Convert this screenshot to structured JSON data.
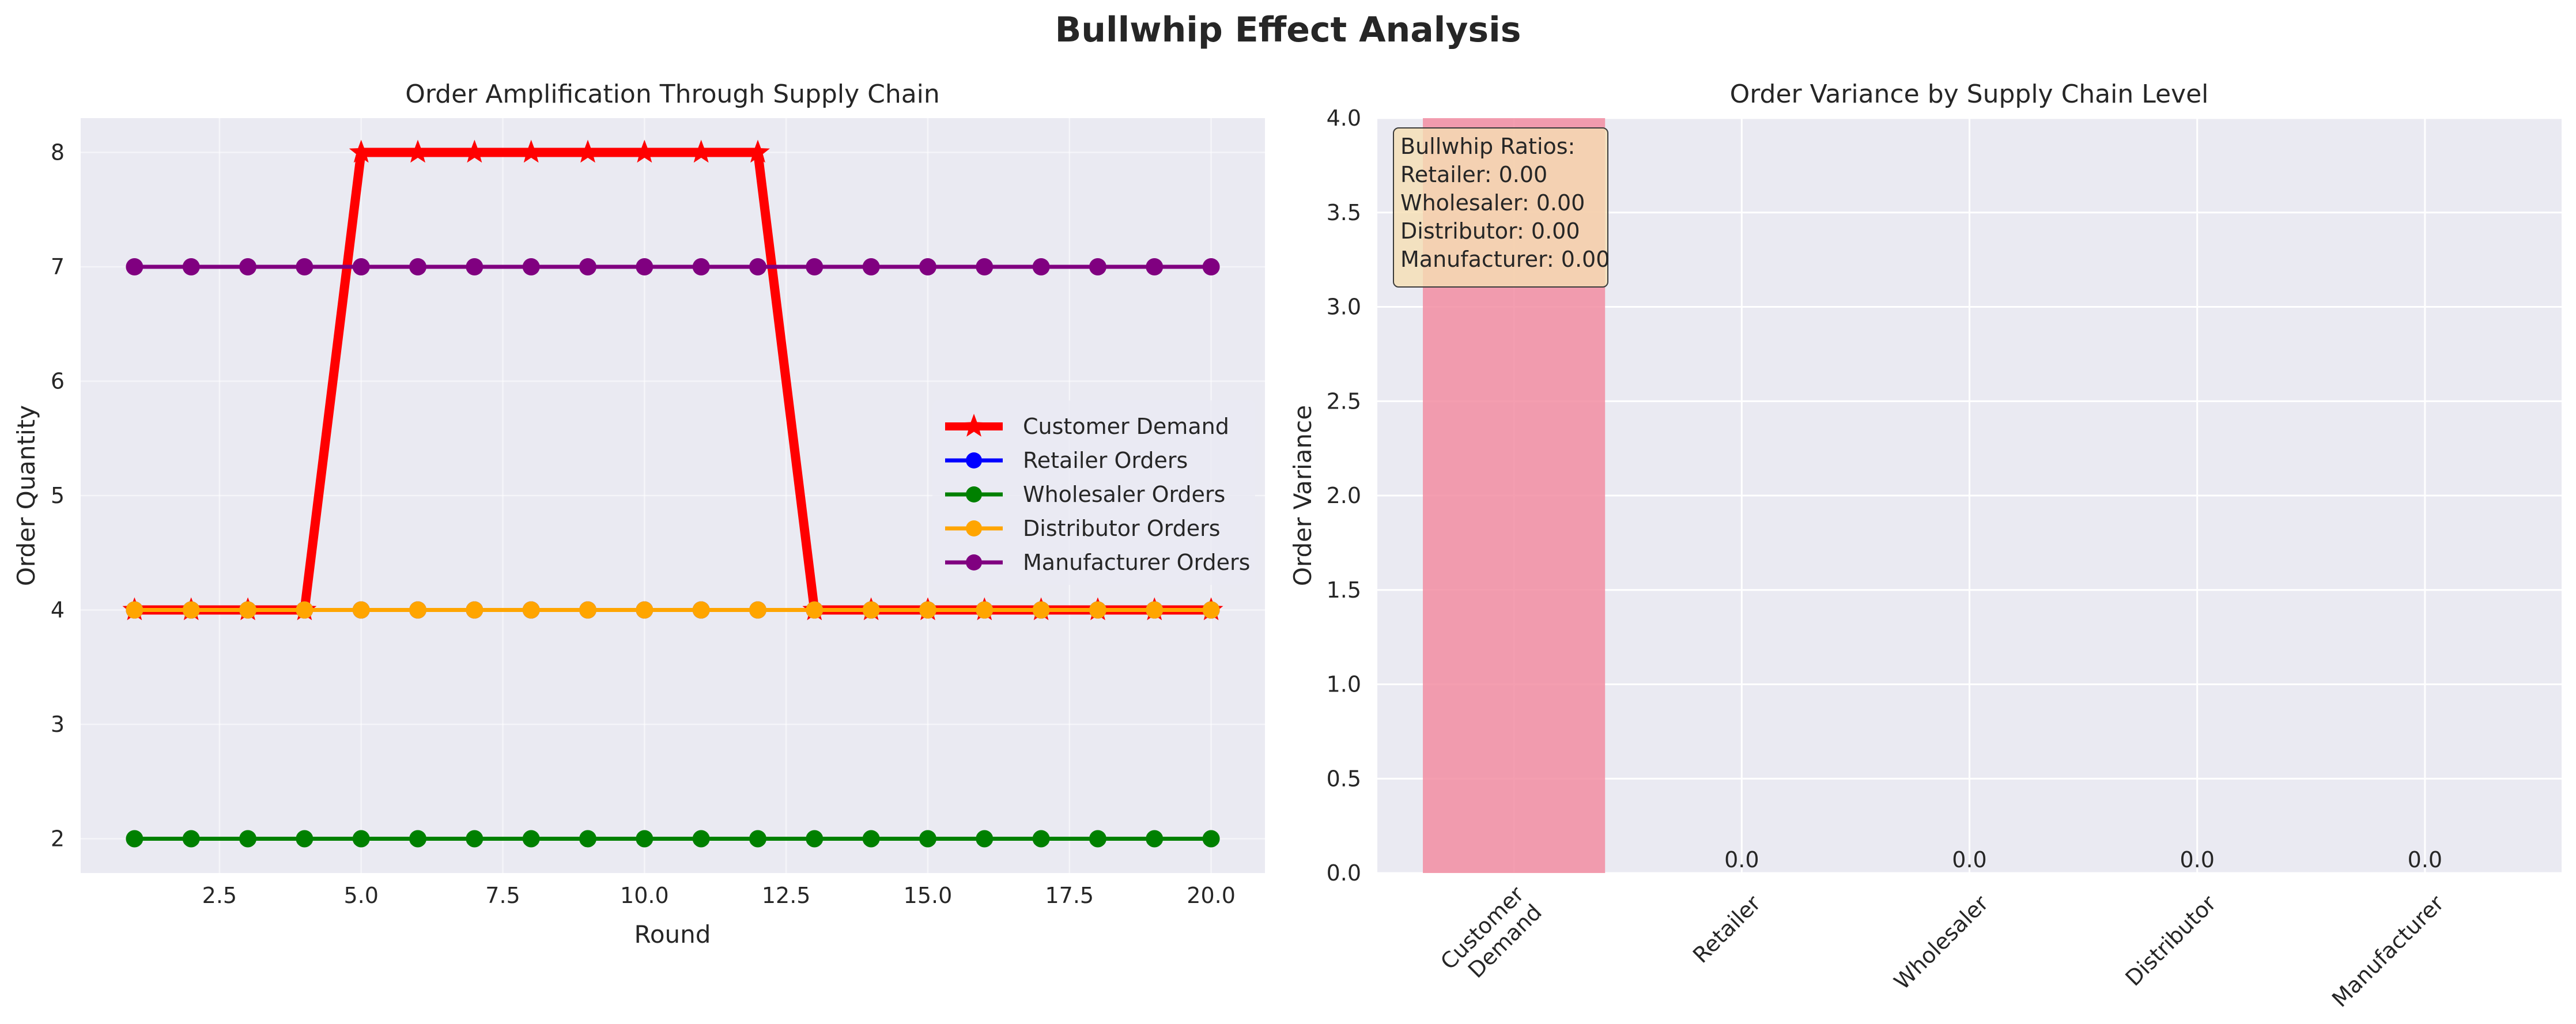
{
  "figure": {
    "suptitle": "Bullwhip Effect Analysis",
    "colors": {
      "plot_bg": "#eaeaf2",
      "grid": "#ffffff",
      "text": "#262626"
    }
  },
  "chart_data": [
    {
      "type": "line",
      "title": "Order Amplification Through Supply Chain",
      "xlabel": "Round",
      "ylabel": "Order Quantity",
      "xlim": [
        0.05,
        20.95
      ],
      "ylim": [
        1.7,
        8.3
      ],
      "xticks": [
        "2.5",
        "5.0",
        "7.5",
        "10.0",
        "12.5",
        "15.0",
        "17.5",
        "20.0"
      ],
      "yticks": [
        "2",
        "3",
        "4",
        "5",
        "6",
        "7",
        "8"
      ],
      "grid": true,
      "legend_position": "center-right",
      "x": [
        1,
        2,
        3,
        4,
        5,
        6,
        7,
        8,
        9,
        10,
        11,
        12,
        13,
        14,
        15,
        16,
        17,
        18,
        19,
        20
      ],
      "series": [
        {
          "name": "Customer Demand",
          "color": "#ff0000",
          "marker": "star",
          "values": [
            4,
            4,
            4,
            4,
            8,
            8,
            8,
            8,
            8,
            8,
            8,
            8,
            4,
            4,
            4,
            4,
            4,
            4,
            4,
            4
          ]
        },
        {
          "name": "Retailer Orders",
          "color": "#0000ff",
          "marker": "circle",
          "values": [
            4,
            4,
            4,
            4,
            4,
            4,
            4,
            4,
            4,
            4,
            4,
            4,
            4,
            4,
            4,
            4,
            4,
            4,
            4,
            4
          ]
        },
        {
          "name": "Wholesaler Orders",
          "color": "#008000",
          "marker": "circle",
          "values": [
            2,
            2,
            2,
            2,
            2,
            2,
            2,
            2,
            2,
            2,
            2,
            2,
            2,
            2,
            2,
            2,
            2,
            2,
            2,
            2
          ]
        },
        {
          "name": "Distributor Orders",
          "color": "#ffa500",
          "marker": "circle",
          "values": [
            4,
            4,
            4,
            4,
            4,
            4,
            4,
            4,
            4,
            4,
            4,
            4,
            4,
            4,
            4,
            4,
            4,
            4,
            4,
            4
          ]
        },
        {
          "name": "Manufacturer Orders",
          "color": "#800080",
          "marker": "circle",
          "values": [
            7,
            7,
            7,
            7,
            7,
            7,
            7,
            7,
            7,
            7,
            7,
            7,
            7,
            7,
            7,
            7,
            7,
            7,
            7,
            7
          ]
        }
      ]
    },
    {
      "type": "bar",
      "title": "Order Variance by Supply Chain Level",
      "xlabel": "",
      "ylabel": "Order Variance",
      "ylim": [
        0,
        4.0
      ],
      "yticks": [
        "0.0",
        "0.5",
        "1.0",
        "1.5",
        "2.0",
        "2.5",
        "3.0",
        "3.5",
        "4.0"
      ],
      "grid": true,
      "categories": [
        "Customer\nDemand",
        "Retailer",
        "Wholesaler",
        "Distributor",
        "Manufacturer"
      ],
      "values": [
        4.13,
        0.0,
        0.0,
        0.0,
        0.0
      ],
      "bar_color": "#f28da2",
      "bar_labels": [
        "",
        "0.0",
        "0.0",
        "0.0",
        "0.0"
      ],
      "annotation": {
        "lines": [
          "Bullwhip Ratios:",
          "Retailer: 0.00",
          "Wholesaler: 0.00",
          "Distributor: 0.00",
          "Manufacturer: 0.00"
        ],
        "box_color": "#f5deb3"
      }
    }
  ]
}
